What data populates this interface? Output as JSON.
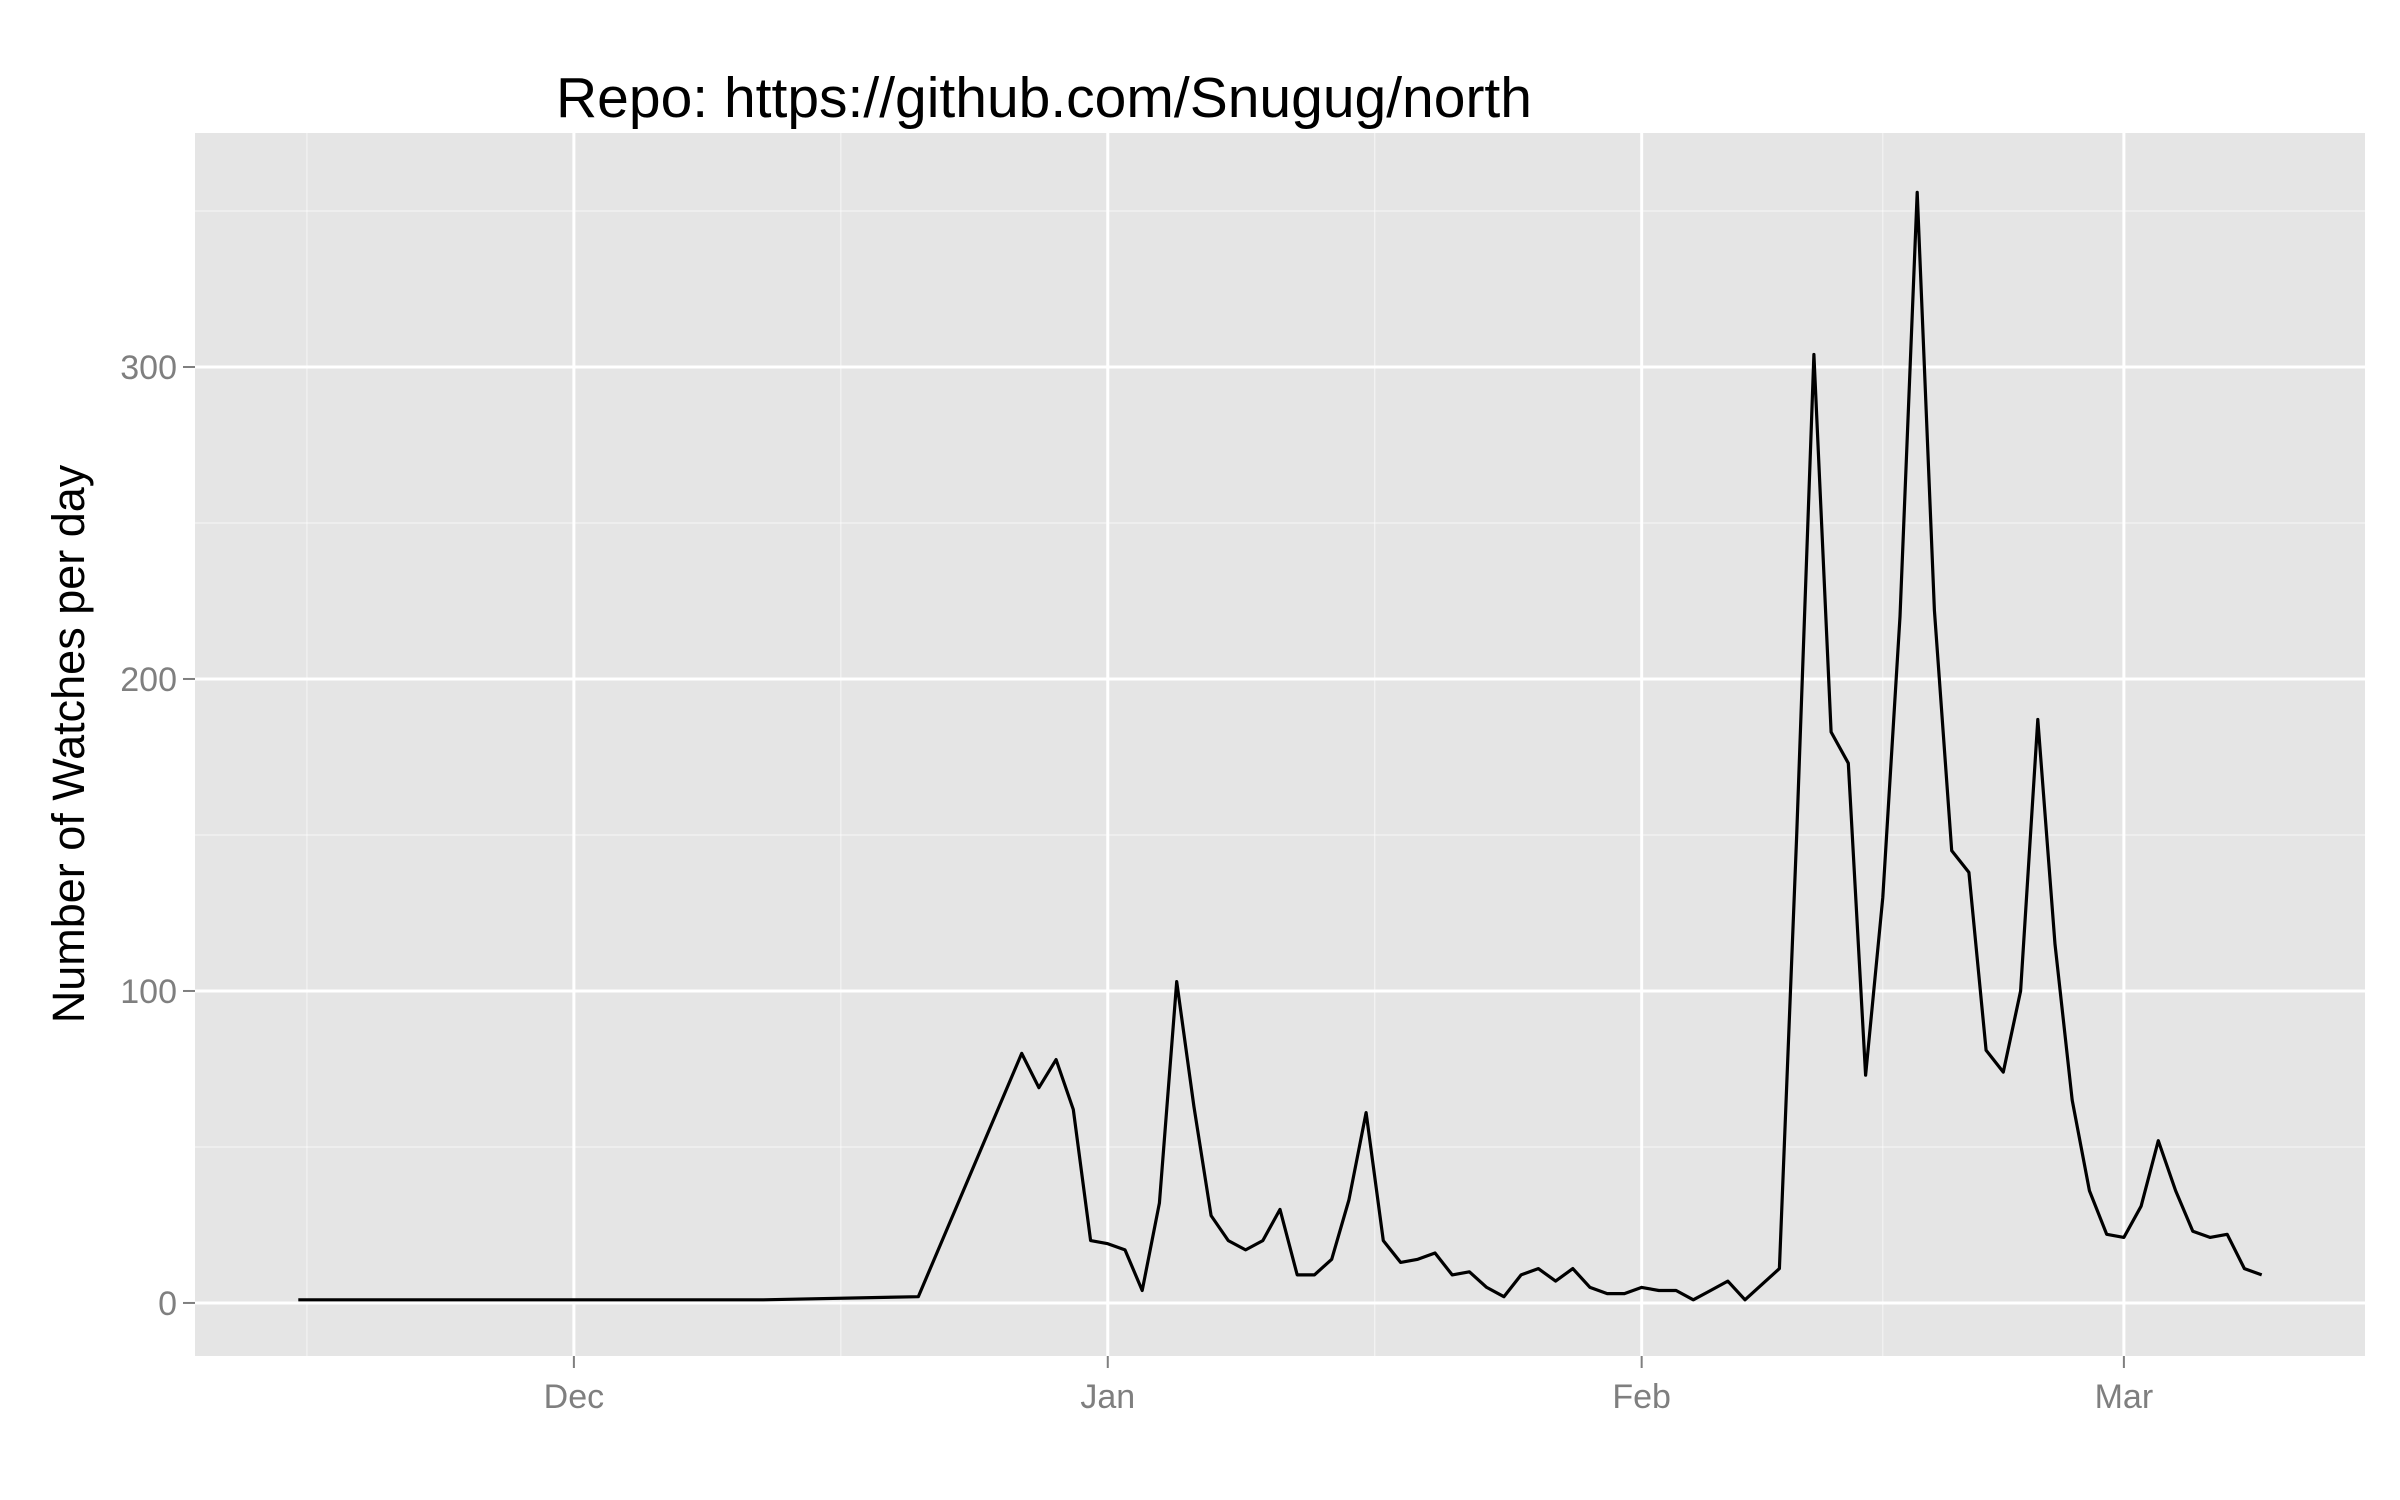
{
  "chart_data": {
    "type": "line",
    "title": "Repo: https://github.com/Snugug/north",
    "xlabel": "",
    "ylabel": "Number of Watches per day",
    "x_ticks": [
      {
        "label": "Dec",
        "date": "2013-12-01"
      },
      {
        "label": "Jan",
        "date": "2014-01-01"
      },
      {
        "label": "Feb",
        "date": "2014-02-01"
      },
      {
        "label": "Mar",
        "date": "2014-03-01"
      }
    ],
    "y_ticks": [
      0,
      100,
      200,
      300
    ],
    "xlim": [
      "2013-11-09",
      "2014-03-15"
    ],
    "ylim": [
      -17,
      375
    ],
    "grid": true,
    "legend": "none",
    "colors": {
      "background": "#e5e5e5",
      "grid": "#ffffff",
      "line": "#000000",
      "tick_label": "#7f7f7f"
    },
    "series": [
      {
        "x": [
          "2013-11-15",
          "2013-12-12",
          "2013-12-21",
          "2013-12-27",
          "2013-12-28",
          "2013-12-29",
          "2013-12-30",
          "2013-12-31",
          "2014-01-01",
          "2014-01-02",
          "2014-01-03",
          "2014-01-04",
          "2014-01-05",
          "2014-01-06",
          "2014-01-07",
          "2014-01-08",
          "2014-01-09",
          "2014-01-10",
          "2014-01-11",
          "2014-01-12",
          "2014-01-13",
          "2014-01-14",
          "2014-01-15",
          "2014-01-16",
          "2014-01-17",
          "2014-01-18",
          "2014-01-19",
          "2014-01-20",
          "2014-01-21",
          "2014-01-22",
          "2014-01-23",
          "2014-01-24",
          "2014-01-25",
          "2014-01-26",
          "2014-01-27",
          "2014-01-28",
          "2014-01-29",
          "2014-01-30",
          "2014-01-31",
          "2014-02-01",
          "2014-02-02",
          "2014-02-03",
          "2014-02-04",
          "2014-02-05",
          "2014-02-06",
          "2014-02-07",
          "2014-02-08",
          "2014-02-09",
          "2014-02-10",
          "2014-02-11",
          "2014-02-12",
          "2014-02-13",
          "2014-02-14",
          "2014-02-15",
          "2014-02-16",
          "2014-02-17",
          "2014-02-18",
          "2014-02-19",
          "2014-02-20",
          "2014-02-21",
          "2014-02-22",
          "2014-02-23",
          "2014-02-24",
          "2014-02-25",
          "2014-02-26",
          "2014-02-27",
          "2014-02-28",
          "2014-03-01",
          "2014-03-02",
          "2014-03-03",
          "2014-03-04",
          "2014-03-05",
          "2014-03-06",
          "2014-03-07",
          "2014-03-08",
          "2014-03-09"
        ],
        "values": [
          1,
          1,
          2,
          80,
          69,
          78,
          62,
          20,
          19,
          17,
          4,
          32,
          103,
          63,
          28,
          20,
          17,
          20,
          30,
          9,
          9,
          14,
          33,
          61,
          20,
          13,
          14,
          16,
          9,
          10,
          5,
          2,
          9,
          11,
          7,
          11,
          5,
          3,
          3,
          5,
          4,
          4,
          1,
          4,
          7,
          1,
          6,
          11,
          150,
          304,
          183,
          173,
          73,
          130,
          220,
          356,
          222,
          145,
          138,
          81,
          74,
          100,
          187,
          115,
          65,
          36,
          22,
          21,
          31,
          52,
          36,
          23,
          21,
          22,
          11,
          9
        ]
      }
    ]
  }
}
